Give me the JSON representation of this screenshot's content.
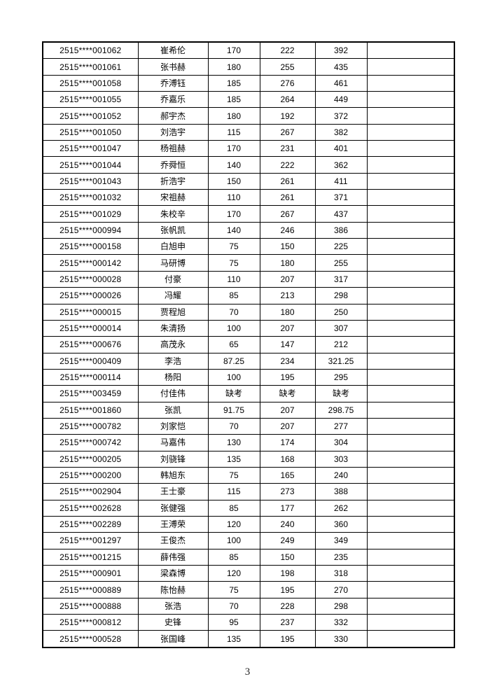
{
  "footer": {
    "page_number": "3"
  },
  "table": {
    "rows": [
      [
        "2515****001062",
        "崔希伦",
        "170",
        "222",
        "392",
        ""
      ],
      [
        "2515****001061",
        "张书赫",
        "180",
        "255",
        "435",
        ""
      ],
      [
        "2515****001058",
        "乔溥钰",
        "185",
        "276",
        "461",
        ""
      ],
      [
        "2515****001055",
        "乔嘉乐",
        "185",
        "264",
        "449",
        ""
      ],
      [
        "2515****001052",
        "郝宇杰",
        "180",
        "192",
        "372",
        ""
      ],
      [
        "2515****001050",
        "刘浩宇",
        "115",
        "267",
        "382",
        ""
      ],
      [
        "2515****001047",
        "杨祖赫",
        "170",
        "231",
        "401",
        ""
      ],
      [
        "2515****001044",
        "乔舜恒",
        "140",
        "222",
        "362",
        ""
      ],
      [
        "2515****001043",
        "折浩宇",
        "150",
        "261",
        "411",
        ""
      ],
      [
        "2515****001032",
        "宋祖赫",
        "110",
        "261",
        "371",
        ""
      ],
      [
        "2515****001029",
        "朱校辛",
        "170",
        "267",
        "437",
        ""
      ],
      [
        "2515****000994",
        "张帆凯",
        "140",
        "246",
        "386",
        ""
      ],
      [
        "2515****000158",
        "白旭申",
        "75",
        "150",
        "225",
        ""
      ],
      [
        "2515****000142",
        "马研博",
        "75",
        "180",
        "255",
        ""
      ],
      [
        "2515****000028",
        "付豪",
        "110",
        "207",
        "317",
        ""
      ],
      [
        "2515****000026",
        "冯耀",
        "85",
        "213",
        "298",
        ""
      ],
      [
        "2515****000015",
        "贾程旭",
        "70",
        "180",
        "250",
        ""
      ],
      [
        "2515****000014",
        "朱清扬",
        "100",
        "207",
        "307",
        ""
      ],
      [
        "2515****000676",
        "高茂永",
        "65",
        "147",
        "212",
        ""
      ],
      [
        "2515****000409",
        "李浩",
        "87.25",
        "234",
        "321.25",
        ""
      ],
      [
        "2515****000114",
        "杨阳",
        "100",
        "195",
        "295",
        ""
      ],
      [
        "2515****003459",
        "付佳伟",
        "缺考",
        "缺考",
        "缺考",
        ""
      ],
      [
        "2515****001860",
        "张凯",
        "91.75",
        "207",
        "298.75",
        ""
      ],
      [
        "2515****000782",
        "刘家恺",
        "70",
        "207",
        "277",
        ""
      ],
      [
        "2515****000742",
        "马嘉伟",
        "130",
        "174",
        "304",
        ""
      ],
      [
        "2515****000205",
        "刘骁锋",
        "135",
        "168",
        "303",
        ""
      ],
      [
        "2515****000200",
        "韩旭东",
        "75",
        "165",
        "240",
        ""
      ],
      [
        "2515****002904",
        "王士豪",
        "115",
        "273",
        "388",
        ""
      ],
      [
        "2515****002628",
        "张健强",
        "85",
        "177",
        "262",
        ""
      ],
      [
        "2515****002289",
        "王溥荣",
        "120",
        "240",
        "360",
        ""
      ],
      [
        "2515****001297",
        "王俊杰",
        "100",
        "249",
        "349",
        ""
      ],
      [
        "2515****001215",
        "薛伟强",
        "85",
        "150",
        "235",
        ""
      ],
      [
        "2515****000901",
        "梁森博",
        "120",
        "198",
        "318",
        ""
      ],
      [
        "2515****000889",
        "陈怡赫",
        "75",
        "195",
        "270",
        ""
      ],
      [
        "2515****000888",
        "张浩",
        "70",
        "228",
        "298",
        ""
      ],
      [
        "2515****000812",
        "史锋",
        "95",
        "237",
        "332",
        ""
      ],
      [
        "2515****000528",
        "张国峰",
        "135",
        "195",
        "330",
        ""
      ]
    ]
  }
}
